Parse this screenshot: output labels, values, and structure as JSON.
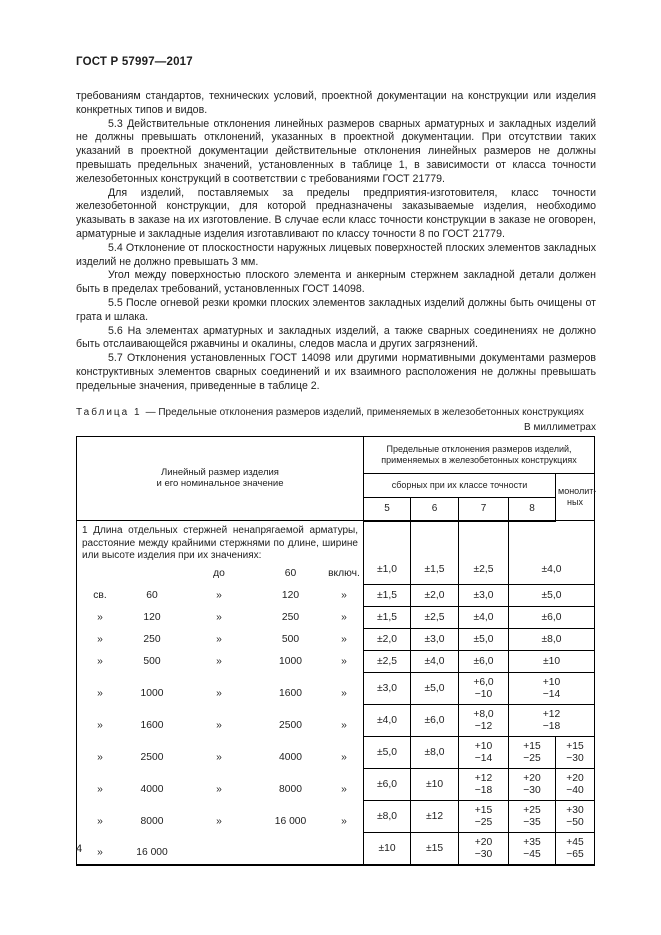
{
  "doc": {
    "number": "ГОСТ Р 57997—2017",
    "page_number": "4"
  },
  "paragraphs": [
    {
      "indent": false,
      "text": "требованиям стандартов, технических условий, проектной документации на конструкции или изделия конкретных типов и видов."
    },
    {
      "indent": true,
      "text": "5.3 Действительные отклонения линейных размеров сварных арматурных и закладных изделий не должны превышать отклонений, указанных в проектной документации. При отсутствии таких указаний в проектной документации действительные отклонения линейных размеров не должны превышать предельных значений, установленных в таблице 1, в зависимости от класса точности железобетонных конструкций в соответствии с требованиями ГОСТ 21779."
    },
    {
      "indent": true,
      "text": "Для изделий, поставляемых за пределы предприятия-изготовителя, класс точности железобетонной конструкции, для которой предназначены заказываемые изделия, необходимо указывать в заказе на их изготовление. В случае если класс точности конструкции в заказе не оговорен, арматурные и закладные изделия изготавливают по классу точности 8 по ГОСТ 21779."
    },
    {
      "indent": true,
      "text": "5.4 Отклонение от плоскостности наружных лицевых поверхностей плоских элементов закладных изделий не должно превышать 3 мм."
    },
    {
      "indent": true,
      "text": "Угол между поверхностью плоского элемента и анкерным стержнем закладной детали должен быть в пределах требований, установленных ГОСТ 14098."
    },
    {
      "indent": true,
      "text": "5.5 После огневой резки кромки плоских элементов закладных изделий должны быть очищены от грата и шлака."
    },
    {
      "indent": true,
      "text": "5.6 На элементах арматурных и закладных изделий, а также сварных соединениях не должно быть отслаивающейся ржавчины и окалины, следов масла и других загрязнений."
    },
    {
      "indent": true,
      "text": "5.7 Отклонения установленных ГОСТ 14098 или другими нормативными документами размеров конструктивных элементов сварных соединений и их взаимного расположения не должны превышать предельные значения, приведенные в таблице 2."
    }
  ],
  "table": {
    "caption_label": "Таблица 1",
    "caption_text": "— Предельные отклонения размеров изделий, применяемых в железобетонных конструкциях",
    "units_note": "В миллиметрах",
    "header": {
      "stub": "Линейный размер изделия\nи его номинальное значение",
      "group": "Предельные отклонения размеров изделий,\nприменяемых в железобетонных конструкциях",
      "subgroup_precast": "сборных при их классе точности",
      "monolithic": "монолит-\nных",
      "class_cols": [
        "5",
        "6",
        "7",
        "8"
      ]
    },
    "item_text": "1 Длина отдельных стержней ненапрягаемой арматуры, расстояние между крайними стержнями по длине, ширине или высоте изделия при их значениях:",
    "rows": [
      {
        "stub": [
          "",
          "",
          "до",
          "60",
          "включ."
        ],
        "values": [
          "±1,0",
          "±1,5",
          "±2,5",
          "±4,0"
        ],
        "merged": true
      },
      {
        "stub": [
          "св.",
          "60",
          "»",
          "120",
          "»"
        ],
        "values": [
          "±1,5",
          "±2,0",
          "±3,0",
          "±5,0"
        ],
        "merged": true
      },
      {
        "stub": [
          "»",
          "120",
          "»",
          "250",
          "»"
        ],
        "values": [
          "±1,5",
          "±2,5",
          "±4,0",
          "±6,0"
        ],
        "merged": true
      },
      {
        "stub": [
          "»",
          "250",
          "»",
          "500",
          "»"
        ],
        "values": [
          "±2,0",
          "±3,0",
          "±5,0",
          "±8,0"
        ],
        "merged": true
      },
      {
        "stub": [
          "»",
          "500",
          "»",
          "1000",
          "»"
        ],
        "values": [
          "±2,5",
          "±4,0",
          "±6,0",
          "±10"
        ],
        "merged": true
      },
      {
        "stub": [
          "»",
          "1000",
          "»",
          "1600",
          "»"
        ],
        "values": [
          "±3,0",
          "±5,0",
          "+6,0\n−10",
          "+10\n−14"
        ],
        "merged": true
      },
      {
        "stub": [
          "»",
          "1600",
          "»",
          "2500",
          "»"
        ],
        "values": [
          "±4,0",
          "±6,0",
          "+8,0\n−12",
          "+12\n−18"
        ],
        "merged": true
      },
      {
        "stub": [
          "»",
          "2500",
          "»",
          "4000",
          "»"
        ],
        "values": [
          "±5,0",
          "±8,0",
          "+10\n−14",
          "+15\n−25",
          "+15\n−30"
        ],
        "merged": false
      },
      {
        "stub": [
          "»",
          "4000",
          "»",
          "8000",
          "»"
        ],
        "values": [
          "±6,0",
          "±10",
          "+12\n−18",
          "+20\n−30",
          "+20\n−40"
        ],
        "merged": false
      },
      {
        "stub": [
          "»",
          "8000",
          "»",
          "16 000",
          "»"
        ],
        "values": [
          "±8,0",
          "±12",
          "+15\n−25",
          "+25\n−35",
          "+30\n−50"
        ],
        "merged": false
      },
      {
        "stub": [
          "»",
          "16 000",
          "",
          "",
          ""
        ],
        "values": [
          "±10",
          "±15",
          "+20\n−30",
          "+35\n−45",
          "+45\n−65"
        ],
        "merged": false
      }
    ]
  }
}
